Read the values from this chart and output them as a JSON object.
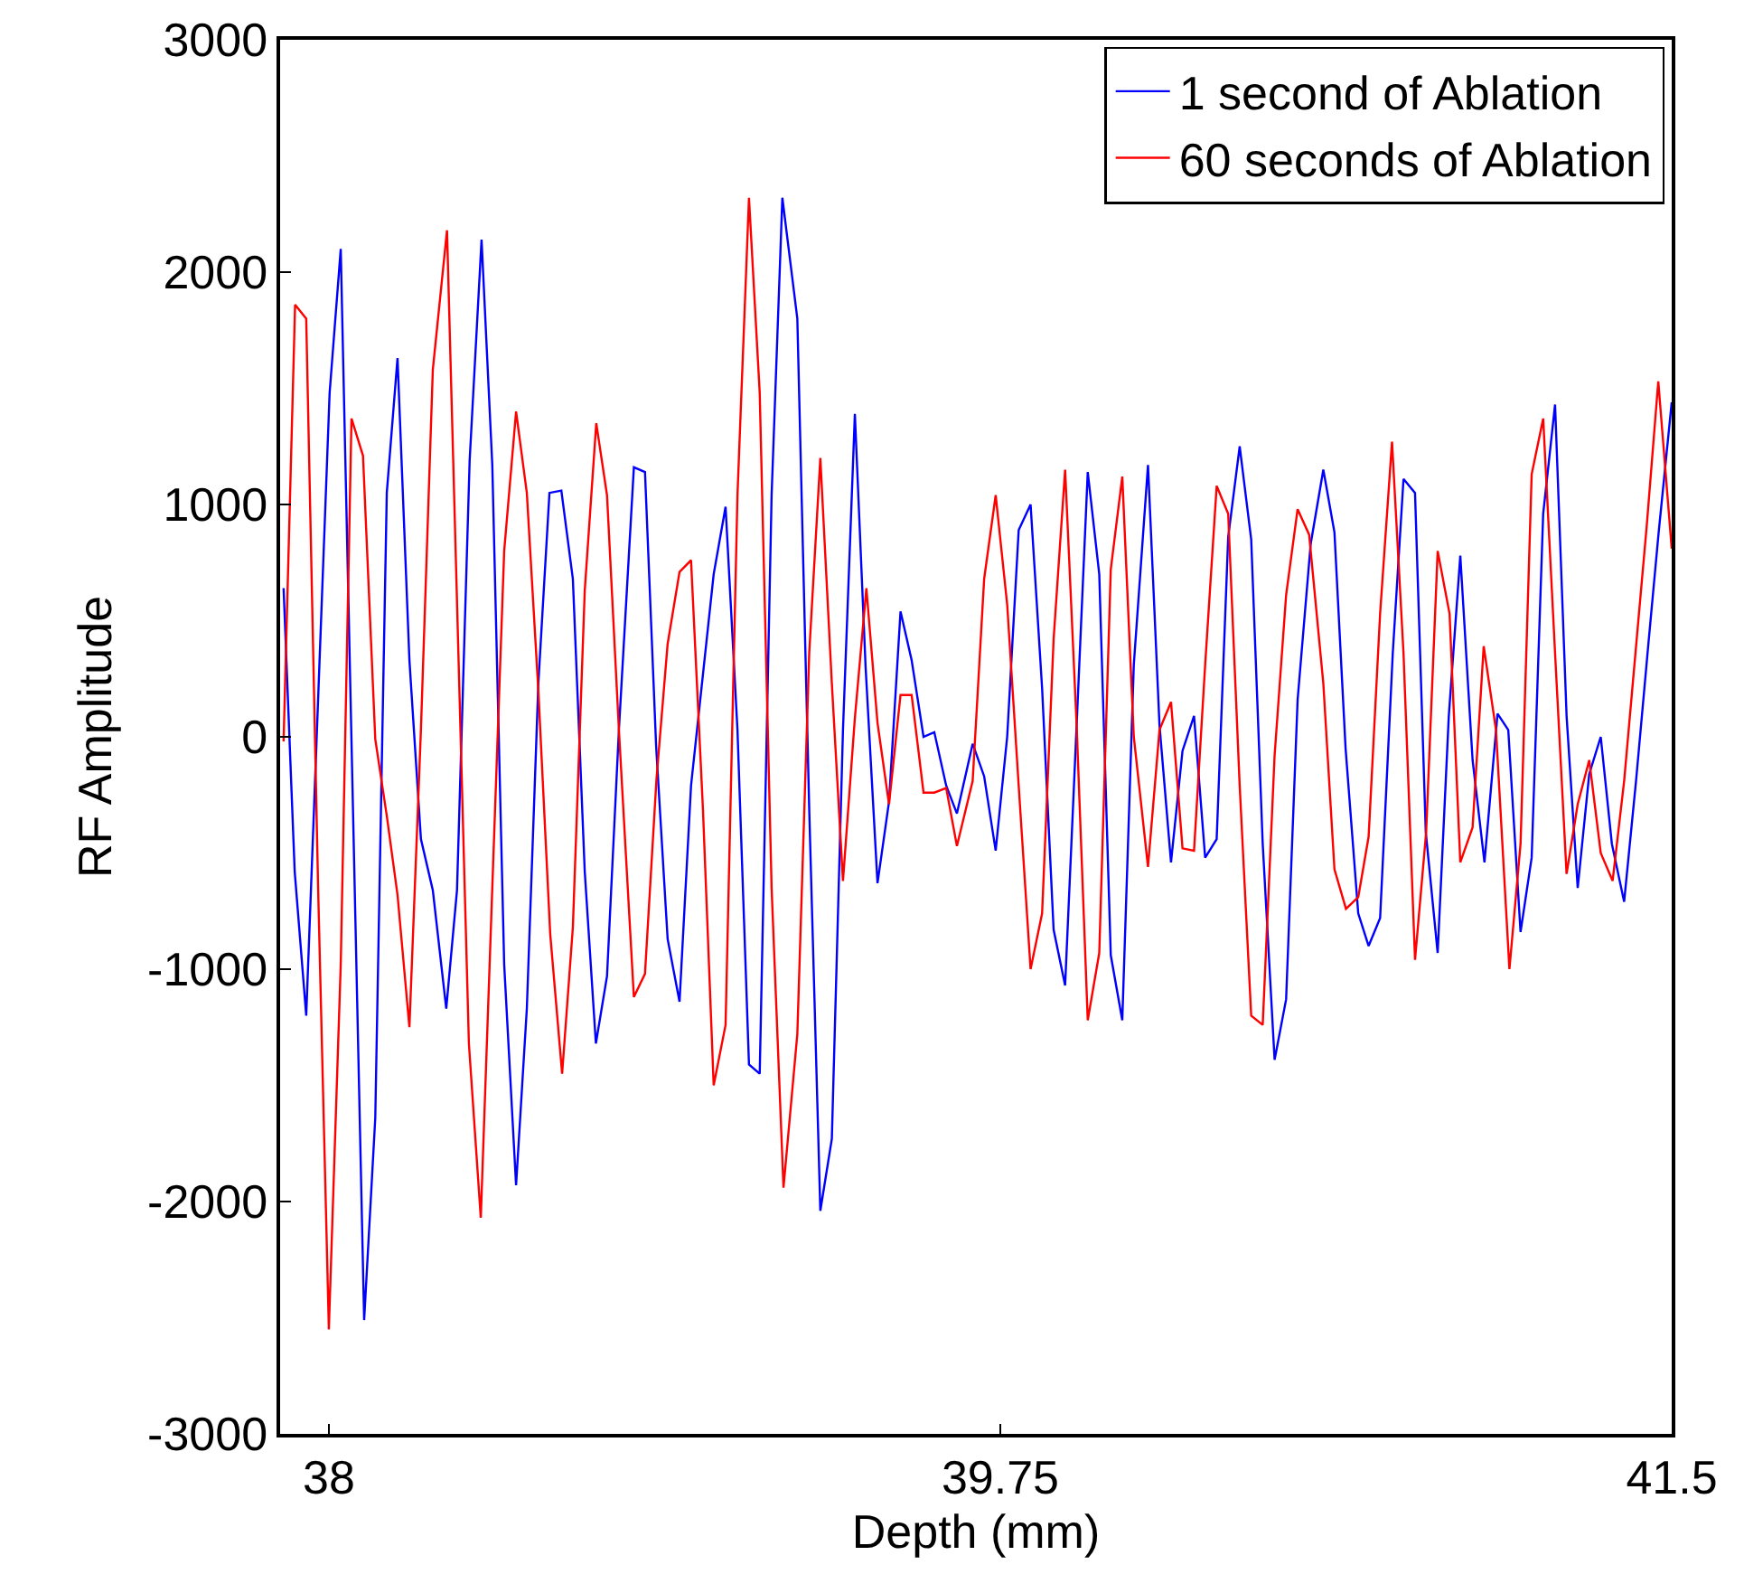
{
  "chart_data": {
    "type": "line",
    "xlabel": "Depth (mm)",
    "ylabel": "RF Amplitude",
    "xlim": [
      37.873,
      41.5
    ],
    "xticks": [
      38,
      39.75,
      41.5
    ],
    "ylim": [
      -3000,
      3000
    ],
    "yticks": [
      -3000,
      -2000,
      -1000,
      0,
      1000,
      2000,
      3000
    ],
    "grid": false,
    "legend": "top right",
    "marker": "none",
    "line_style": "solid",
    "series": [
      {
        "name": "1 second of Ablation",
        "color": "#0000ff",
        "x": [
          37.882,
          37.911,
          37.941,
          38.002,
          38.031,
          38.092,
          38.121,
          38.151,
          38.179,
          38.21,
          38.24,
          38.271,
          38.306,
          38.334,
          38.367,
          38.398,
          38.426,
          38.457,
          38.488,
          38.516,
          38.546,
          38.575,
          38.606,
          38.636,
          38.667,
          38.696,
          38.725,
          38.756,
          38.795,
          38.824,
          38.853,
          38.883,
          38.914,
          38.944,
          39.003,
          39.034,
          39.065,
          39.095,
          39.123,
          39.154,
          39.182,
          39.221,
          39.252,
          39.281,
          39.311,
          39.34,
          39.371,
          39.399,
          39.43,
          39.46,
          39.49,
          39.519,
          39.55,
          39.578,
          39.609,
          39.637,
          39.678,
          39.708,
          39.738,
          39.768,
          39.798,
          39.829,
          39.859,
          39.889,
          39.919,
          39.949,
          39.978,
          40.008,
          40.038,
          40.068,
          40.098,
          40.135,
          40.165,
          40.195,
          40.225,
          40.255,
          40.284,
          40.314,
          40.344,
          40.374,
          40.404,
          40.434,
          40.465,
          40.495,
          40.525,
          40.559,
          40.592,
          40.621,
          40.65,
          40.683,
          40.71,
          40.74,
          40.773,
          40.801,
          40.831,
          40.859,
          40.89,
          40.919,
          40.949,
          40.981,
          41.012,
          41.046,
          41.074,
          41.106,
          41.135,
          41.165,
          41.196,
          41.226,
          41.255,
          41.285,
          41.315,
          41.344,
          41.376,
          41.407,
          41.437,
          41.466,
          41.5
        ],
        "values": [
          640,
          -580,
          -1200,
          1480,
          2100,
          -2510,
          -1640,
          1050,
          1630,
          330,
          -440,
          -660,
          -1170,
          -660,
          1190,
          2140,
          1170,
          -980,
          -1930,
          -1170,
          230,
          1050,
          1060,
          680,
          -580,
          -1320,
          -1030,
          30,
          1160,
          1140,
          -40,
          -870,
          -1140,
          -210,
          700,
          990,
          30,
          -1410,
          -1450,
          1040,
          2320,
          1800,
          -310,
          -2040,
          -1730,
          30,
          1390,
          300,
          -630,
          -280,
          540,
          330,
          0,
          20,
          -210,
          -330,
          -30,
          -170,
          -490,
          0,
          890,
          1000,
          210,
          -830,
          -1070,
          50,
          1140,
          700,
          -940,
          -1220,
          310,
          1170,
          50,
          -540,
          -60,
          90,
          -520,
          -440,
          860,
          1250,
          850,
          -460,
          -1390,
          -1130,
          160,
          830,
          1150,
          880,
          -50,
          -760,
          -900,
          -780,
          360,
          1110,
          1050,
          -410,
          -930,
          90,
          780,
          -100,
          -540,
          100,
          30,
          -840,
          -520,
          960,
          1430,
          90,
          -650,
          -160,
          0,
          -460,
          -710,
          -190,
          360,
          880,
          1440
        ]
      },
      {
        "name": "60 seconds of Ablation",
        "color": "#ff0000",
        "x": [
          37.882,
          37.912,
          37.941,
          37.972,
          38.0,
          38.031,
          38.059,
          38.089,
          38.121,
          38.151,
          38.179,
          38.21,
          38.24,
          38.271,
          38.308,
          38.365,
          38.396,
          38.426,
          38.457,
          38.488,
          38.516,
          38.546,
          38.577,
          38.608,
          38.636,
          38.667,
          38.697,
          38.725,
          38.756,
          38.795,
          38.824,
          38.854,
          38.883,
          38.914,
          38.944,
          38.975,
          39.003,
          39.034,
          39.065,
          39.095,
          39.123,
          39.154,
          39.185,
          39.221,
          39.252,
          39.281,
          39.311,
          39.34,
          39.371,
          39.401,
          39.43,
          39.46,
          39.49,
          39.519,
          39.55,
          39.578,
          39.609,
          39.637,
          39.678,
          39.708,
          39.738,
          39.768,
          39.798,
          39.829,
          39.859,
          39.889,
          39.919,
          39.949,
          39.978,
          40.008,
          40.038,
          40.068,
          40.098,
          40.135,
          40.165,
          40.195,
          40.225,
          40.255,
          40.284,
          40.314,
          40.344,
          40.374,
          40.404,
          40.434,
          40.465,
          40.495,
          40.525,
          40.555,
          40.592,
          40.621,
          40.651,
          40.683,
          40.71,
          40.74,
          40.771,
          40.801,
          40.831,
          40.86,
          40.89,
          40.921,
          40.949,
          40.981,
          41.01,
          41.042,
          41.077,
          41.106,
          41.135,
          41.165,
          41.196,
          41.226,
          41.255,
          41.285,
          41.315,
          41.346,
          41.376,
          41.435,
          41.465,
          41.5
        ],
        "values": [
          -20,
          1860,
          1800,
          -650,
          -2550,
          -980,
          1370,
          1210,
          -10,
          -340,
          -680,
          -1250,
          30,
          1580,
          2180,
          -1320,
          -2070,
          -650,
          800,
          1400,
          1050,
          200,
          -850,
          -1450,
          -820,
          630,
          1350,
          1040,
          30,
          -1120,
          -1020,
          -180,
          400,
          710,
          760,
          -310,
          -1500,
          -1240,
          1040,
          2320,
          1480,
          -650,
          -1940,
          -1280,
          360,
          1200,
          230,
          -620,
          80,
          640,
          60,
          -290,
          180,
          180,
          -240,
          -240,
          -220,
          -470,
          -190,
          680,
          1040,
          570,
          -210,
          -1000,
          -760,
          420,
          1150,
          50,
          -1220,
          -930,
          720,
          1120,
          0,
          -560,
          30,
          150,
          -480,
          -490,
          310,
          1080,
          960,
          -210,
          -1200,
          -1240,
          -80,
          610,
          980,
          870,
          230,
          -570,
          -740,
          -690,
          -430,
          530,
          1270,
          360,
          -960,
          -410,
          800,
          530,
          -540,
          -390,
          390,
          30,
          -1000,
          -460,
          1130,
          1370,
          360,
          -590,
          -290,
          -100,
          -500,
          -620,
          -190,
          910,
          1530,
          810
        ]
      }
    ]
  }
}
